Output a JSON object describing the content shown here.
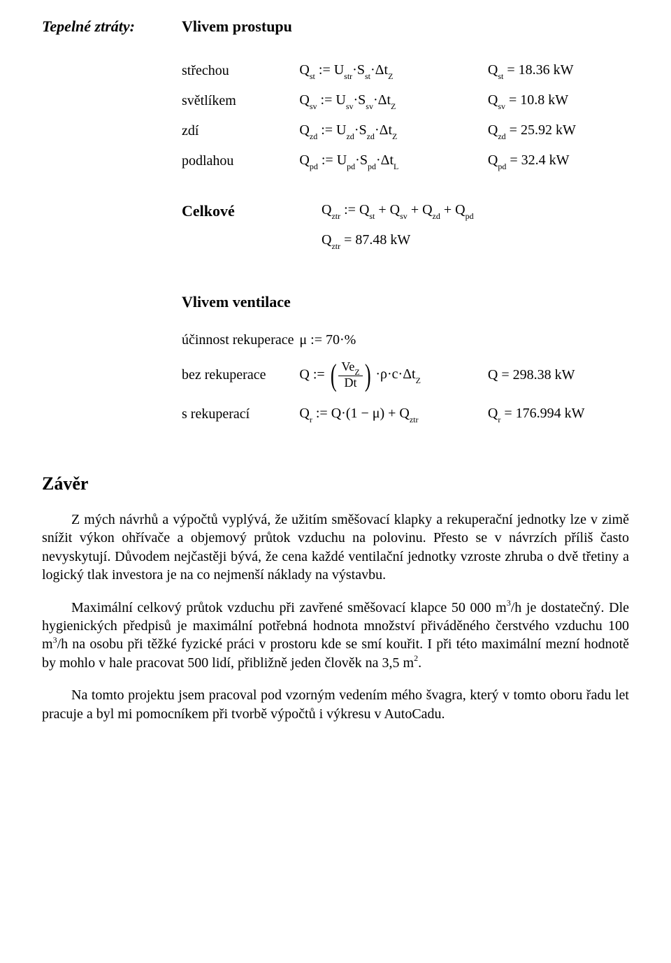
{
  "header": {
    "title_left": "Tepelné ztráty:",
    "title_right": "Vlivem prostupu"
  },
  "prostup": {
    "rows": [
      {
        "label": "střechou",
        "formula": "Q<sub>st</sub> := U<sub>str</sub>·S<sub>st</sub>·Δt<sub>Z</sub>",
        "result": "Q<sub>st</sub> = 18.36 kW"
      },
      {
        "label": "světlíkem",
        "formula": "Q<sub>sv</sub> := U<sub>sv</sub>·S<sub>sv</sub>·Δt<sub>Z</sub>",
        "result": "Q<sub>sv</sub> = 10.8 kW"
      },
      {
        "label": "zdí",
        "formula": "Q<sub>zd</sub> := U<sub>zd</sub>·S<sub>zd</sub>·Δt<sub>Z</sub>",
        "result": "Q<sub>zd</sub> = 25.92 kW"
      },
      {
        "label": "podlahou",
        "formula": "Q<sub>pd</sub> := U<sub>pd</sub>·S<sub>pd</sub>·Δt<sub>L</sub>",
        "result": "Q<sub>pd</sub> = 32.4 kW"
      }
    ],
    "total_label": "Celkové",
    "total_formula": "Q<sub>ztr</sub> := Q<sub>st</sub> + Q<sub>sv</sub> + Q<sub>zd</sub> + Q<sub>pd</sub>",
    "total_result": "Q<sub>ztr</sub> = 87.48 kW"
  },
  "ventilace": {
    "heading": "Vlivem ventilace",
    "rows": [
      {
        "label": "účinnost rekuperace",
        "formula": "μ := 70·%",
        "result": ""
      },
      {
        "label": "bez rekuperace",
        "formula_prefix": "Q := ",
        "frac_num": "Ve<sub>Z</sub>",
        "frac_den": "Dt",
        "formula_suffix": "·ρ·c·Δt<sub>Z</sub>",
        "result": "Q = 298.38 kW"
      },
      {
        "label": "s rekuperací",
        "formula": "Q<sub>r</sub> := Q·(1 − μ) + Q<sub>ztr</sub>",
        "result": "Q<sub>r</sub> = 176.994 kW"
      }
    ]
  },
  "zaver": {
    "heading": "Závěr",
    "p1": "Z mých návrhů a výpočtů vyplývá, že užitím směšovací klapky a rekuperační jednotky lze v zimě snížit výkon ohřívače a objemový průtok vzduchu na polovinu. Přesto se v návrzích příliš často nevyskytují. Důvodem nejčastěji bývá, že cena každé ventilační jednotky vzroste zhruba o dvě třetiny a logický tlak investora je na co nejmenší náklady na výstavbu.",
    "p2a": "Maximální celkový průtok vzduchu při zavřené směšovací klapce 50 000 m",
    "p2a_sup": "3",
    "p2b": "/h je dostatečný. Dle hygienických předpisů je maximální potřebná hodnota množství přiváděného čerstvého vzduchu 100 m",
    "p2b_sup": "3",
    "p2c": "/h na osobu při těžké fyzické práci v prostoru kde se smí kouřit. I při této maximální mezní hodnotě by mohlo v hale pracovat 500 lidí, přibližně jeden člověk na 3,5 m",
    "p2c_sup": "2",
    "p2d": ".",
    "p3": "Na tomto projektu jsem pracoval pod vzorným vedením mého švagra, který v tomto oboru řadu let pracuje a byl mi pomocníkem při tvorbě výpočtů i výkresu v AutoCadu."
  }
}
